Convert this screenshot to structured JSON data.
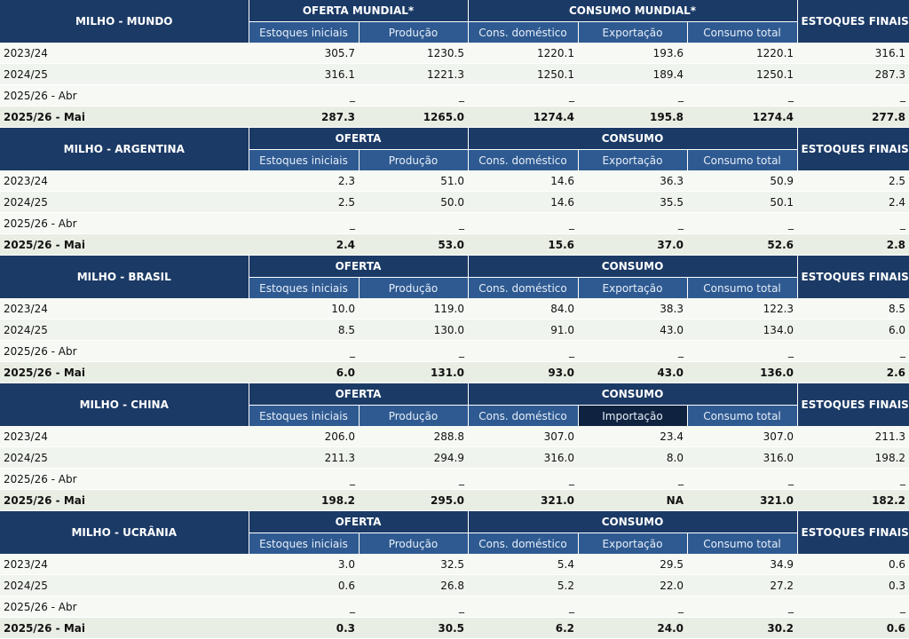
{
  "empty_mark": "_",
  "blocks": [
    {
      "title": "MILHO - MUNDO",
      "supply_header": "OFERTA MUNDIAL*",
      "consumption_header": "CONSUMO MUNDIAL*",
      "stock_header": "ESTOQUES FINAIS*",
      "columns": [
        "Estoques iniciais",
        "Produção",
        "Cons. doméstico",
        "Exportação",
        "Consumo total"
      ],
      "rows": [
        {
          "label": "2023/24",
          "values": [
            "305.7",
            "1230.5",
            "1220.1",
            "193.6",
            "1220.1",
            "316.1"
          ]
        },
        {
          "label": "2024/25",
          "values": [
            "316.1",
            "1221.3",
            "1250.1",
            "189.4",
            "1250.1",
            "287.3"
          ]
        },
        {
          "label": "2025/26 - Abr",
          "values": [
            "_",
            "_",
            "_",
            "_",
            "_",
            "_"
          ]
        },
        {
          "label": "2025/26 - Mai",
          "values": [
            "287.3",
            "1265.0",
            "1274.4",
            "195.8",
            "1274.4",
            "277.8"
          ]
        }
      ]
    },
    {
      "title": "MILHO - ARGENTINA",
      "supply_header": "OFERTA",
      "consumption_header": "CONSUMO",
      "stock_header": "ESTOQUES FINAIS*",
      "columns": [
        "Estoques iniciais",
        "Produção",
        "Cons. doméstico",
        "Exportação",
        "Consumo total"
      ],
      "rows": [
        {
          "label": "2023/24",
          "values": [
            "2.3",
            "51.0",
            "14.6",
            "36.3",
            "50.9",
            "2.5"
          ]
        },
        {
          "label": "2024/25",
          "values": [
            "2.5",
            "50.0",
            "14.6",
            "35.5",
            "50.1",
            "2.4"
          ]
        },
        {
          "label": "2025/26 - Abr",
          "values": [
            "_",
            "_",
            "_",
            "_",
            "_",
            "_"
          ]
        },
        {
          "label": "2025/26 - Mai",
          "values": [
            "2.4",
            "53.0",
            "15.6",
            "37.0",
            "52.6",
            "2.8"
          ]
        }
      ]
    },
    {
      "title": "MILHO - BRASIL",
      "supply_header": "OFERTA",
      "consumption_header": "CONSUMO",
      "stock_header": "ESTOQUES FINAIS*",
      "columns": [
        "Estoques iniciais",
        "Produção",
        "Cons. doméstico",
        "Exportação",
        "Consumo total"
      ],
      "rows": [
        {
          "label": "2023/24",
          "values": [
            "10.0",
            "119.0",
            "84.0",
            "38.3",
            "122.3",
            "8.5"
          ]
        },
        {
          "label": "2024/25",
          "values": [
            "8.5",
            "130.0",
            "91.0",
            "43.0",
            "134.0",
            "6.0"
          ]
        },
        {
          "label": "2025/26 - Abr",
          "values": [
            "_",
            "_",
            "_",
            "_",
            "_",
            "_"
          ]
        },
        {
          "label": "2025/26 - Mai",
          "values": [
            "6.0",
            "131.0",
            "93.0",
            "43.0",
            "136.0",
            "2.6"
          ]
        }
      ]
    },
    {
      "title": "MILHO - CHINA",
      "supply_header": "OFERTA",
      "consumption_header": "CONSUMO",
      "stock_header": "ESTOQUES FINAIS*",
      "columns": [
        "Estoques iniciais",
        "Produção",
        "Cons. doméstico",
        "Importação",
        "Consumo total"
      ],
      "highlight_column": 3,
      "rows": [
        {
          "label": "2023/24",
          "values": [
            "206.0",
            "288.8",
            "307.0",
            "23.4",
            "307.0",
            "211.3"
          ]
        },
        {
          "label": "2024/25",
          "values": [
            "211.3",
            "294.9",
            "316.0",
            "8.0",
            "316.0",
            "198.2"
          ]
        },
        {
          "label": "2025/26 - Abr",
          "values": [
            "_",
            "_",
            "_",
            "_",
            "_",
            "_"
          ]
        },
        {
          "label": "2025/26 - Mai",
          "values": [
            "198.2",
            "295.0",
            "321.0",
            "NA",
            "321.0",
            "182.2"
          ]
        }
      ]
    },
    {
      "title": "MILHO - UCRÂNIA",
      "supply_header": "OFERTA",
      "consumption_header": "CONSUMO",
      "stock_header": "ESTOQUES FINAIS*",
      "columns": [
        "Estoques iniciais",
        "Produção",
        "Cons. doméstico",
        "Exportação",
        "Consumo total"
      ],
      "rows": [
        {
          "label": "2023/24",
          "values": [
            "3.0",
            "32.5",
            "5.4",
            "29.5",
            "34.9",
            "0.6"
          ]
        },
        {
          "label": "2024/25",
          "values": [
            "0.6",
            "26.8",
            "5.2",
            "22.0",
            "27.2",
            "0.3"
          ]
        },
        {
          "label": "2025/26 - Abr",
          "values": [
            "_",
            "_",
            "_",
            "_",
            "_",
            "_"
          ]
        },
        {
          "label": "2025/26 - Mai",
          "values": [
            "0.3",
            "30.5",
            "6.2",
            "24.0",
            "30.2",
            "0.6"
          ]
        }
      ]
    }
  ],
  "colors": {
    "header_dark": "#1b3a66",
    "subheader": "#2e5a91",
    "highlight_subheader": "#0f2340"
  }
}
